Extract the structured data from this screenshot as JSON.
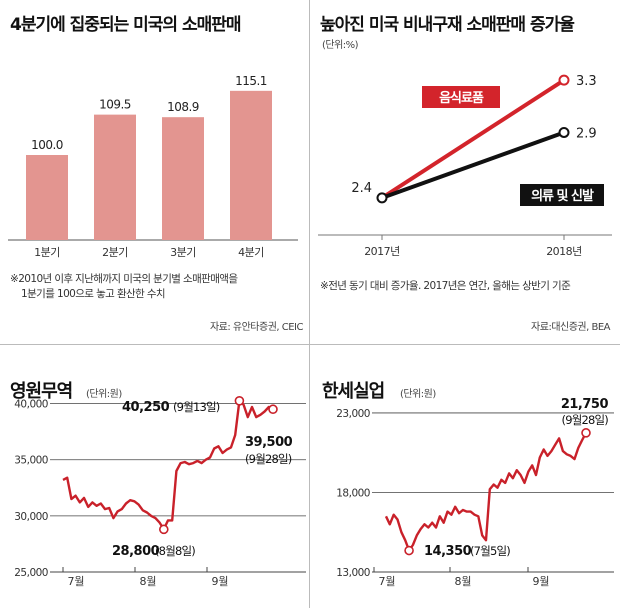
{
  "chart_data": [
    {
      "type": "bar",
      "title": "4분기에 집중되는 미국의 소매판매",
      "categories": [
        "1분기",
        "2분기",
        "3분기",
        "4분기"
      ],
      "values": [
        100.0,
        109.5,
        108.9,
        115.1
      ],
      "value_labels": [
        "100.0",
        "109.5",
        "108.9",
        "115.1"
      ],
      "ylim": [
        80,
        120
      ],
      "note_lines": [
        "※2010년 이후 지난해까지 미국의 분기별 소매판매액을",
        "1분기를 100으로 놓고 환산한 수치"
      ],
      "source": "자료: 유안타증권, CEIC",
      "colors": {
        "bar": "#e39590"
      }
    },
    {
      "type": "line",
      "title": "높아진 미국 비내구재 소매판매 증가율",
      "unit": "(단위:%)",
      "categories": [
        "2017년",
        "2018년"
      ],
      "series": [
        {
          "name": "음식료품",
          "values": [
            2.4,
            3.3
          ],
          "value_labels": [
            "2.4",
            "3.3"
          ],
          "color": "#d3242b"
        },
        {
          "name": "의류 및 신발",
          "values": [
            2.4,
            2.9
          ],
          "value_labels": [
            "2.4",
            "2.9"
          ],
          "color": "#111111"
        }
      ],
      "ylim": [
        2.2,
        3.5
      ],
      "note": "※전년 동기 대비 증가율. 2017년은 연간, 올해는 상반기 기준",
      "source": "자료:대신증권, BEA"
    },
    {
      "type": "line",
      "title": "영원무역",
      "unit": "(단위:원)",
      "x_labels": [
        "7월",
        "8월",
        "9월"
      ],
      "y_ticks": [
        25000,
        30000,
        35000,
        40000
      ],
      "y_tick_labels": [
        "25,000",
        "30,000",
        "35,000",
        "40,000"
      ],
      "ylim": [
        25000,
        40500
      ],
      "series": [
        {
          "name": "영원무역",
          "color": "#c9212a",
          "values": [
            33200,
            33400,
            31500,
            31800,
            31200,
            31600,
            30800,
            31200,
            30900,
            31100,
            30600,
            30700,
            29800,
            30400,
            30600,
            31100,
            31400,
            31300,
            31000,
            30500,
            30300,
            30000,
            29800,
            29400,
            28800,
            29600,
            29600,
            34000,
            34700,
            34800,
            34600,
            34700,
            34900,
            34700,
            35000,
            35200,
            36000,
            36200,
            35600,
            35900,
            36100,
            37200,
            40250,
            39900,
            38800,
            39700,
            38800,
            39000,
            39300,
            39700,
            39500
          ]
        }
      ],
      "annotations": [
        {
          "label": "28,800",
          "date": "(8월8일)",
          "index": 24
        },
        {
          "label": "40,250",
          "date": "(9월13일)",
          "index": 42
        },
        {
          "label": "39,500",
          "date": "(9월28일)",
          "index": 50
        }
      ]
    },
    {
      "type": "line",
      "title": "한세실업",
      "unit": "(단위:원)",
      "x_labels": [
        "7월",
        "8월",
        "9월"
      ],
      "y_ticks": [
        13000,
        18000,
        23000
      ],
      "y_tick_labels": [
        "13,000",
        "18,000",
        "23,000"
      ],
      "ylim": [
        13000,
        23500
      ],
      "series": [
        {
          "name": "한세실업",
          "color": "#c9212a",
          "values": [
            16500,
            16000,
            16600,
            16300,
            15500,
            15000,
            14350,
            14700,
            15300,
            15700,
            16000,
            15800,
            16100,
            15800,
            16500,
            16100,
            16800,
            16600,
            17100,
            16700,
            16900,
            16800,
            16800,
            16600,
            16500,
            15300,
            15000,
            18200,
            18500,
            18300,
            18800,
            18600,
            19200,
            18900,
            19400,
            19100,
            18600,
            19300,
            19700,
            19100,
            20200,
            20700,
            20300,
            20600,
            21000,
            21400,
            20600,
            20400,
            20300,
            20100,
            20800,
            21300,
            21750
          ]
        }
      ],
      "annotations": [
        {
          "label": "14,350",
          "date": "(7월5일)",
          "index": 6
        },
        {
          "label": "21,750",
          "date": "(9월28일)",
          "index": 52
        }
      ]
    }
  ]
}
